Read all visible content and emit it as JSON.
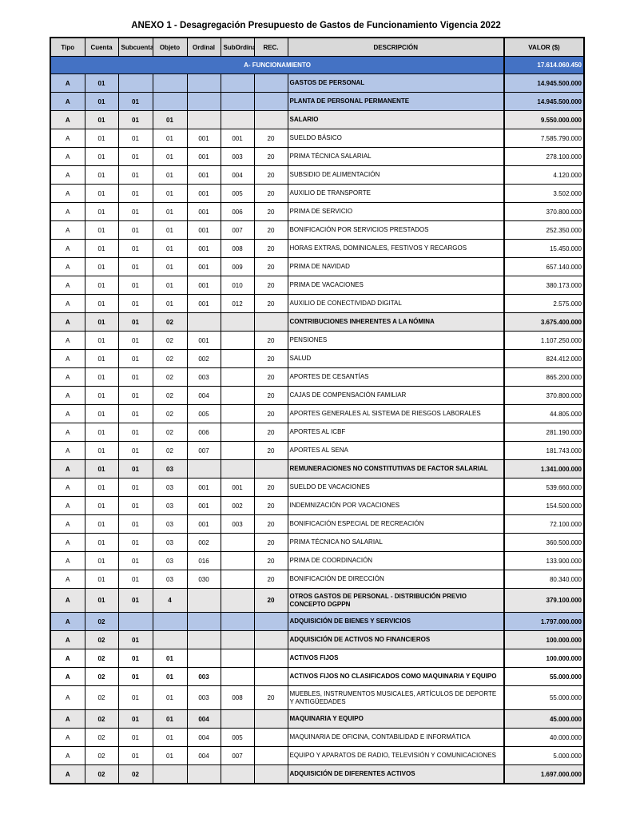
{
  "title": "ANEXO 1 - Desagregación Presupuesto de Gastos de Funcionamiento Vigencia 2022",
  "columns": [
    "Tipo",
    "Cuenta",
    "Subcuenta",
    "Objeto",
    "Ordinal",
    "SubOrdinal",
    "REC.",
    "DESCRIPCIÓN",
    "VALOR ($)"
  ],
  "section": {
    "label": "A- FUNCIONAMIENTO",
    "value": "17.614.060.450"
  },
  "colors": {
    "header": "#d9d9d9",
    "section": "#4472c4",
    "level1": "#b4c6e7",
    "subtotal": "#e7e6e6"
  },
  "rows": [
    {
      "style": "blue",
      "cells": [
        "A",
        "01",
        "",
        "",
        "",
        "",
        "",
        "GASTOS DE PERSONAL",
        "14.945.500.000"
      ]
    },
    {
      "style": "blue",
      "cells": [
        "A",
        "01",
        "01",
        "",
        "",
        "",
        "",
        "PLANTA DE PERSONAL PERMANENTE",
        "14.945.500.000"
      ]
    },
    {
      "style": "grey",
      "cells": [
        "A",
        "01",
        "01",
        "01",
        "",
        "",
        "",
        "SALARIO",
        "9.550.000.000"
      ]
    },
    {
      "style": "",
      "cells": [
        "A",
        "01",
        "01",
        "01",
        "001",
        "001",
        "20",
        "SUELDO BÁSICO",
        "7.585.790.000"
      ]
    },
    {
      "style": "",
      "cells": [
        "A",
        "01",
        "01",
        "01",
        "001",
        "003",
        "20",
        "PRIMA TÉCNICA SALARIAL",
        "278.100.000"
      ]
    },
    {
      "style": "",
      "cells": [
        "A",
        "01",
        "01",
        "01",
        "001",
        "004",
        "20",
        "SUBSIDIO DE ALIMENTACIÓN",
        "4.120.000"
      ]
    },
    {
      "style": "",
      "cells": [
        "A",
        "01",
        "01",
        "01",
        "001",
        "005",
        "20",
        "AUXILIO DE TRANSPORTE",
        "3.502.000"
      ]
    },
    {
      "style": "",
      "cells": [
        "A",
        "01",
        "01",
        "01",
        "001",
        "006",
        "20",
        "PRIMA DE SERVICIO",
        "370.800.000"
      ]
    },
    {
      "style": "",
      "cells": [
        "A",
        "01",
        "01",
        "01",
        "001",
        "007",
        "20",
        "BONIFICACIÓN POR SERVICIOS PRESTADOS",
        "252.350.000"
      ]
    },
    {
      "style": "",
      "cells": [
        "A",
        "01",
        "01",
        "01",
        "001",
        "008",
        "20",
        "HORAS EXTRAS, DOMINICALES, FESTIVOS Y RECARGOS",
        "15.450.000"
      ]
    },
    {
      "style": "",
      "cells": [
        "A",
        "01",
        "01",
        "01",
        "001",
        "009",
        "20",
        "PRIMA DE NAVIDAD",
        "657.140.000"
      ]
    },
    {
      "style": "",
      "cells": [
        "A",
        "01",
        "01",
        "01",
        "001",
        "010",
        "20",
        "PRIMA DE VACACIONES",
        "380.173.000"
      ]
    },
    {
      "style": "",
      "cells": [
        "A",
        "01",
        "01",
        "01",
        "001",
        "012",
        "20",
        "AUXILIO DE CONECTIVIDAD DIGITAL",
        "2.575.000"
      ]
    },
    {
      "style": "grey",
      "cells": [
        "A",
        "01",
        "01",
        "02",
        "",
        "",
        "",
        "CONTRIBUCIONES INHERENTES A LA NÓMINA",
        "3.675.400.000"
      ]
    },
    {
      "style": "",
      "cells": [
        "A",
        "01",
        "01",
        "02",
        "001",
        "",
        "20",
        "PENSIONES",
        "1.107.250.000"
      ]
    },
    {
      "style": "",
      "cells": [
        "A",
        "01",
        "01",
        "02",
        "002",
        "",
        "20",
        "SALUD",
        "824.412.000"
      ]
    },
    {
      "style": "",
      "cells": [
        "A",
        "01",
        "01",
        "02",
        "003",
        "",
        "20",
        "APORTES DE CESANTÍAS",
        "865.200.000"
      ]
    },
    {
      "style": "",
      "cells": [
        "A",
        "01",
        "01",
        "02",
        "004",
        "",
        "20",
        "CAJAS DE COMPENSACIÓN FAMILIAR",
        "370.800.000"
      ]
    },
    {
      "style": "",
      "cells": [
        "A",
        "01",
        "01",
        "02",
        "005",
        "",
        "20",
        "APORTES GENERALES AL SISTEMA DE RIESGOS LABORALES",
        "44.805.000"
      ]
    },
    {
      "style": "",
      "cells": [
        "A",
        "01",
        "01",
        "02",
        "006",
        "",
        "20",
        "APORTES AL ICBF",
        "281.190.000"
      ]
    },
    {
      "style": "",
      "cells": [
        "A",
        "01",
        "01",
        "02",
        "007",
        "",
        "20",
        "APORTES AL SENA",
        "181.743.000"
      ]
    },
    {
      "style": "grey",
      "cells": [
        "A",
        "01",
        "01",
        "03",
        "",
        "",
        "",
        "REMUNERACIONES NO CONSTITUTIVAS DE FACTOR SALARIAL",
        "1.341.000.000"
      ]
    },
    {
      "style": "",
      "cells": [
        "A",
        "01",
        "01",
        "03",
        "001",
        "001",
        "20",
        "SUELDO DE VACACIONES",
        "539.660.000"
      ]
    },
    {
      "style": "",
      "cells": [
        "A",
        "01",
        "01",
        "03",
        "001",
        "002",
        "20",
        "INDEMNIZACIÓN POR VACACIONES",
        "154.500.000"
      ]
    },
    {
      "style": "",
      "cells": [
        "A",
        "01",
        "01",
        "03",
        "001",
        "003",
        "20",
        "BONIFICACIÓN ESPECIAL DE RECREACIÓN",
        "72.100.000"
      ]
    },
    {
      "style": "",
      "cells": [
        "A",
        "01",
        "01",
        "03",
        "002",
        "",
        "20",
        "PRIMA TÉCNICA NO SALARIAL",
        "360.500.000"
      ]
    },
    {
      "style": "",
      "cells": [
        "A",
        "01",
        "01",
        "03",
        "016",
        "",
        "20",
        "PRIMA DE COORDINACIÓN",
        "133.900.000"
      ]
    },
    {
      "style": "",
      "cells": [
        "A",
        "01",
        "01",
        "03",
        "030",
        "",
        "20",
        "BONIFICACIÓN DE DIRECCIÓN",
        "80.340.000"
      ]
    },
    {
      "style": "grey tall",
      "cells": [
        "A",
        "01",
        "01",
        "4",
        "",
        "",
        "20",
        "OTROS GASTOS DE PERSONAL - DISTRIBUCIÓN PREVIO CONCEPTO DGPPN",
        "379.100.000"
      ]
    },
    {
      "style": "blue",
      "cells": [
        "A",
        "02",
        "",
        "",
        "",
        "",
        "",
        "ADQUISICIÓN DE BIENES Y SERVICIOS",
        "1.797.000.000"
      ]
    },
    {
      "style": "grey",
      "cells": [
        "A",
        "02",
        "01",
        "",
        "",
        "",
        "",
        "ADQUISICIÓN DE ACTIVOS NO FINANCIEROS",
        "100.000.000"
      ]
    },
    {
      "style": "bold",
      "cells": [
        "A",
        "02",
        "01",
        "01",
        "",
        "",
        "",
        "ACTIVOS FIJOS",
        "100.000.000"
      ]
    },
    {
      "style": "bold",
      "cells": [
        "A",
        "02",
        "01",
        "01",
        "003",
        "",
        "",
        "ACTIVOS FIJOS NO CLASIFICADOS COMO MAQUINARIA Y EQUIPO",
        "55.000.000"
      ]
    },
    {
      "style": "tall",
      "cells": [
        "A",
        "02",
        "01",
        "01",
        "003",
        "008",
        "20",
        "MUEBLES, INSTRUMENTOS MUSICALES, ARTÍCULOS DE DEPORTE Y ANTIGÜEDADES",
        "55.000.000"
      ]
    },
    {
      "style": "grey",
      "cells": [
        "A",
        "02",
        "01",
        "01",
        "004",
        "",
        "",
        "MAQUINARIA Y EQUIPO",
        "45.000.000"
      ]
    },
    {
      "style": "",
      "cells": [
        "A",
        "02",
        "01",
        "01",
        "004",
        "005",
        "",
        "MAQUINARIA DE OFICINA, CONTABILIDAD E INFORMÁTICA",
        "40.000.000"
      ]
    },
    {
      "style": "",
      "cells": [
        "A",
        "02",
        "01",
        "01",
        "004",
        "007",
        "",
        "EQUIPO Y APARATOS DE RADIO, TELEVISIÓN Y COMUNICACIONES",
        "5.000.000"
      ]
    },
    {
      "style": "grey",
      "cells": [
        "A",
        "02",
        "02",
        "",
        "",
        "",
        "",
        "ADQUISICIÓN DE DIFERENTES ACTIVOS",
        "1.697.000.000"
      ]
    }
  ]
}
